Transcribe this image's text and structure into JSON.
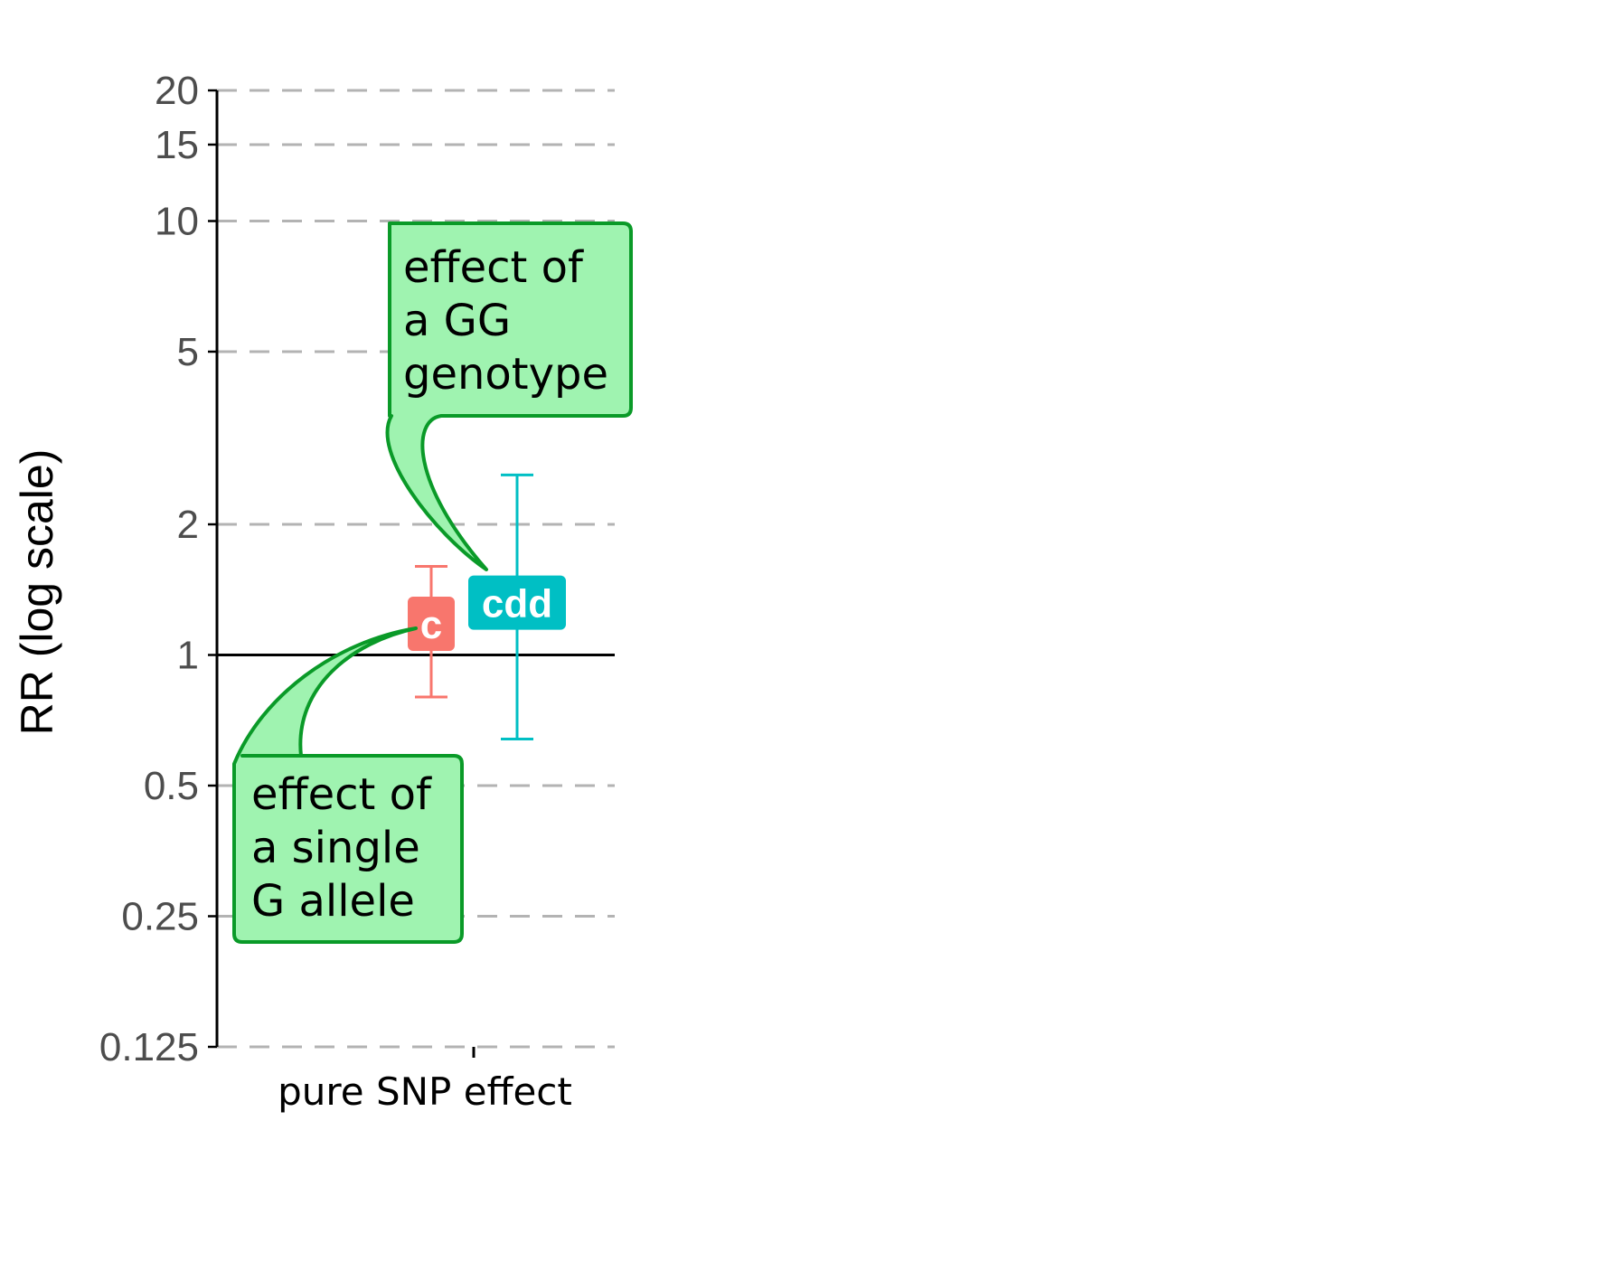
{
  "chart_data": {
    "type": "errorbar",
    "ylabel": "RR (log scale)",
    "yscale": "log",
    "ylim": [
      0.125,
      20
    ],
    "yticks": [
      {
        "value": 0.125,
        "label": "0.125"
      },
      {
        "value": 0.25,
        "label": "0.25"
      },
      {
        "value": 0.5,
        "label": "0.5"
      },
      {
        "value": 1,
        "label": "1"
      },
      {
        "value": 2,
        "label": "2"
      },
      {
        "value": 5,
        "label": "5"
      },
      {
        "value": 10,
        "label": "10"
      },
      {
        "value": 15,
        "label": "15"
      },
      {
        "value": 20,
        "label": "20"
      }
    ],
    "grid": "horizontal dashed",
    "reference_line": 1,
    "categories": [
      "pure SNP effect"
    ],
    "series": [
      {
        "label": "c",
        "color": "#F8766D",
        "estimate": 1.18,
        "lower": 0.8,
        "upper": 1.6
      },
      {
        "label": "cdd",
        "color": "#00BFC4",
        "estimate": 1.32,
        "lower": 0.64,
        "upper": 2.6
      }
    ],
    "annotations": [
      {
        "lines": [
          "effect of",
          "a GG",
          "genotype"
        ],
        "points_to": "cdd"
      },
      {
        "lines": [
          "effect of",
          "a single",
          "G allele"
        ],
        "points_to": "c"
      }
    ],
    "annotation_fill": "#9FF3B0",
    "annotation_stroke": "#0A9A28"
  }
}
